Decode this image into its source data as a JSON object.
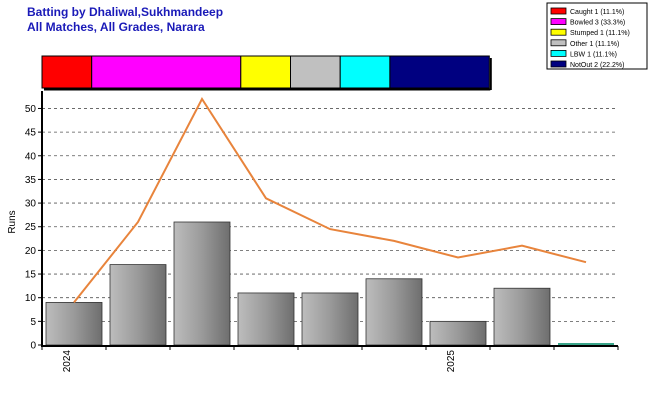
{
  "header": {
    "title_line1": "Batting by Dhaliwal,Sukhmandeep",
    "title_line2": "All Matches, All Grades, Narara"
  },
  "legend": [
    {
      "label": "Caught 1 (11.1%)",
      "color": "#ff0000",
      "count": 1
    },
    {
      "label": "Bowled 3 (33.3%)",
      "color": "#ff00ff",
      "count": 3
    },
    {
      "label": "Stumped 1 (11.1%)",
      "color": "#ffff00",
      "count": 1
    },
    {
      "label": "Other 1 (11.1%)",
      "color": "#c0c0c0",
      "count": 1
    },
    {
      "label": "LBW 1 (11.1%)",
      "color": "#00ffff",
      "count": 1
    },
    {
      "label": "NotOut 2 (22.2%)",
      "color": "#000080",
      "count": 2
    }
  ],
  "chart_data": {
    "type": "bar",
    "ylabel": "Runs",
    "ylim": [
      0,
      52
    ],
    "yticks": [
      0,
      5,
      10,
      15,
      20,
      25,
      30,
      35,
      40,
      45,
      50
    ],
    "x_tick_labels": [
      {
        "label": "2024",
        "index": 0
      },
      {
        "label": "2025",
        "index": 6
      }
    ],
    "bars": [
      9,
      17,
      26,
      11,
      11,
      14,
      5,
      12,
      0
    ],
    "line": [
      9,
      26,
      52,
      31,
      24.5,
      22,
      18.5,
      21,
      17.5
    ],
    "line_color": "#e8843c",
    "grid": true
  }
}
